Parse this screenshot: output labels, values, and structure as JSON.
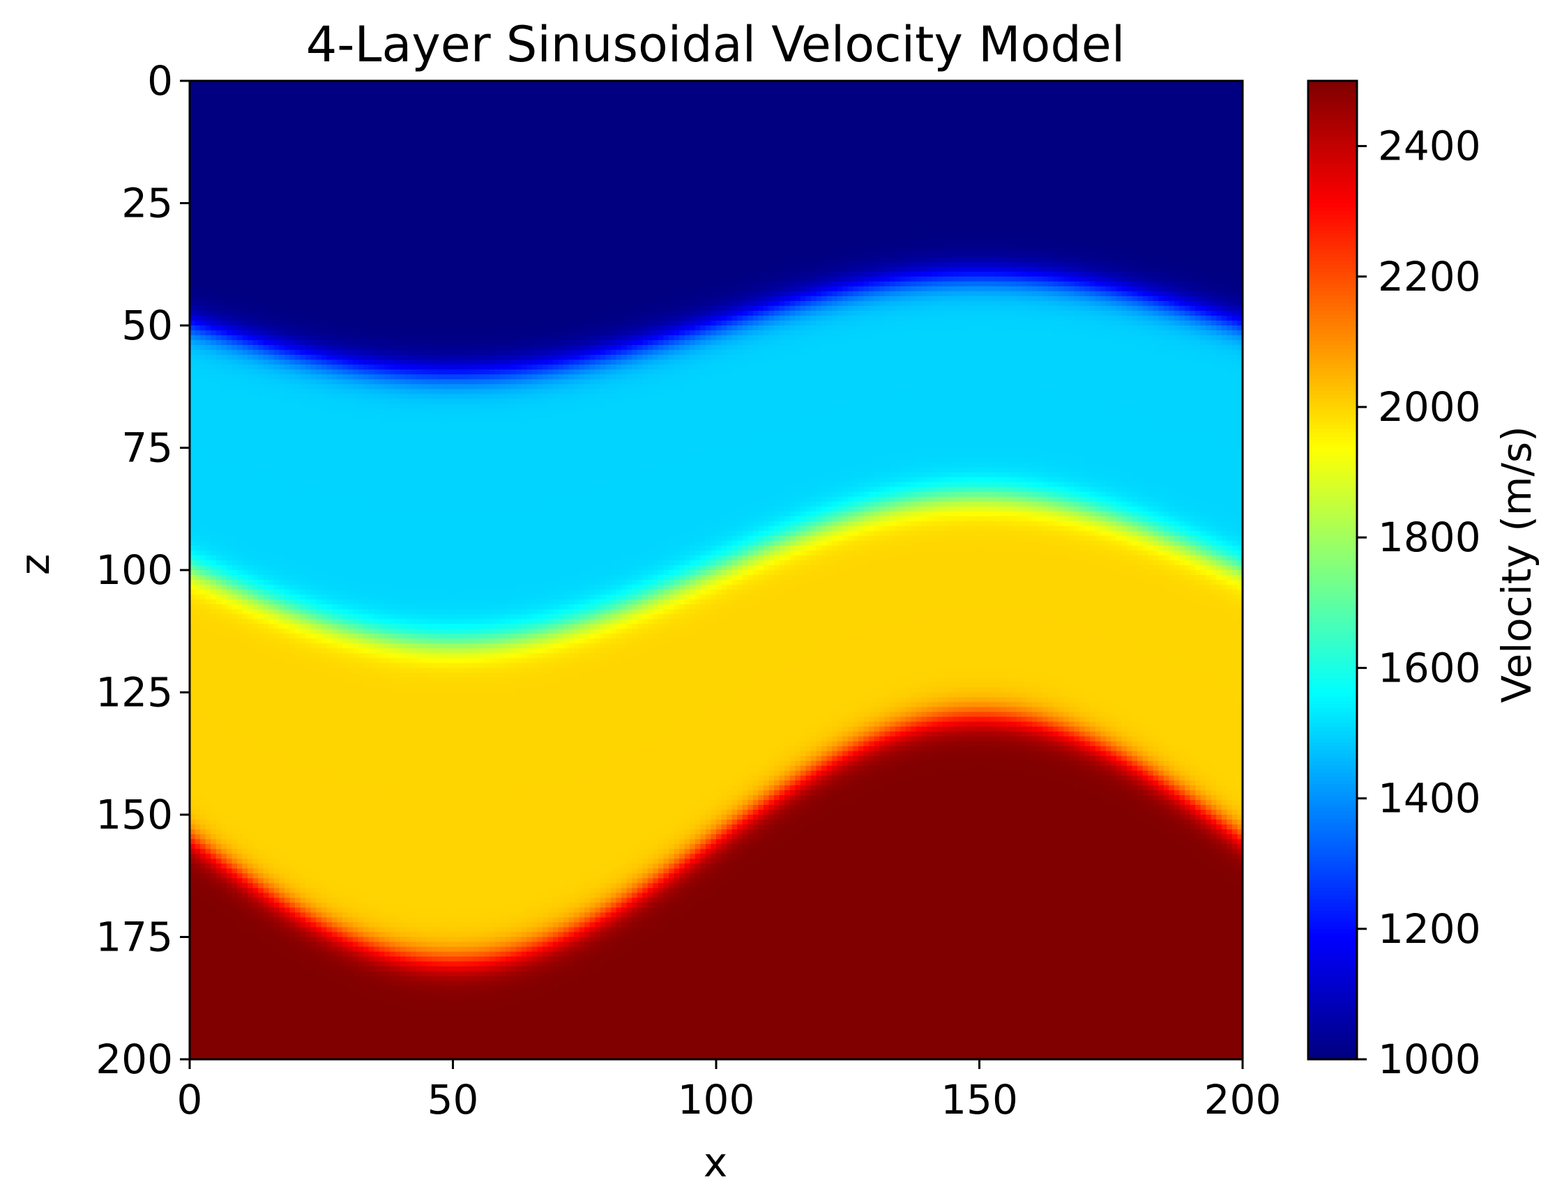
{
  "chart_data": {
    "type": "heatmap",
    "title": "4-Layer Sinusoidal Velocity Model",
    "xlabel": "x",
    "ylabel": "z",
    "colorbar_label": "Velocity (m/s)",
    "colormap": "jet",
    "xlim": [
      0,
      200
    ],
    "zlim": [
      0,
      200
    ],
    "z_axis_inverted": true,
    "x_ticks": [
      0,
      50,
      100,
      150,
      200
    ],
    "z_ticks": [
      0,
      25,
      50,
      75,
      100,
      125,
      150,
      175,
      200
    ],
    "clim": [
      1000,
      2500
    ],
    "colorbar_ticks": [
      1000,
      1200,
      1400,
      1600,
      1800,
      2000,
      2200,
      2400
    ],
    "layers": [
      {
        "velocity": 1000,
        "top_depth": 0
      },
      {
        "velocity": 1500,
        "interface_mean_depth": 50,
        "amplitude": 10,
        "period": 200
      },
      {
        "velocity": 2000,
        "interface_mean_depth": 100,
        "amplitude": 15,
        "period": 200
      },
      {
        "velocity": 2500,
        "interface_mean_depth": 155,
        "amplitude": 25,
        "period": 200
      }
    ],
    "interface_shape": "z = mean + amplitude * sin(2*pi*x/period)",
    "grid": false
  }
}
